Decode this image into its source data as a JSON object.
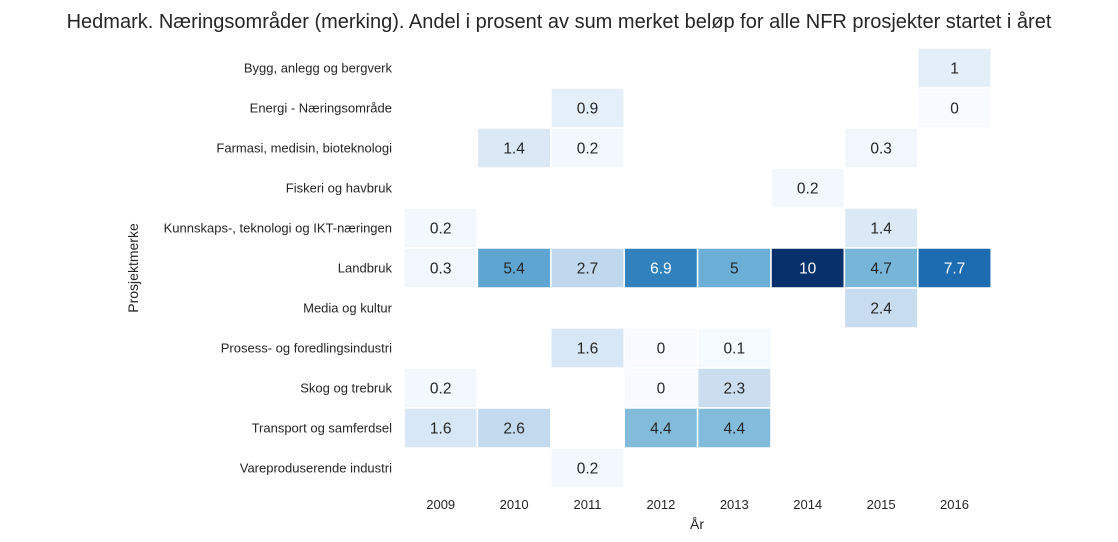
{
  "chart_data": {
    "type": "heatmap",
    "title": "Hedmark. Næringsområder (merking). Andel i prosent av sum merket beløp for alle NFR prosjekter startet i året",
    "xlabel": "År",
    "ylabel": "Prosjektmerke",
    "x": [
      "2009",
      "2010",
      "2011",
      "2012",
      "2013",
      "2014",
      "2015",
      "2016"
    ],
    "y": [
      "Bygg, anlegg og bergverk",
      "Energi - Næringsområde",
      "Farmasi, medisin, bioteknologi",
      "Fiskeri og havbruk",
      "Kunnskaps-, teknologi og IKT-næringen",
      "Landbruk",
      "Media og kultur",
      "Prosess- og foredlingsindustri",
      "Skog og trebruk",
      "Transport og samferdsel",
      "Vareproduserende industri"
    ],
    "values": [
      [
        null,
        null,
        null,
        null,
        null,
        null,
        null,
        1
      ],
      [
        null,
        null,
        0.9,
        null,
        null,
        null,
        null,
        0
      ],
      [
        null,
        1.4,
        0.2,
        null,
        null,
        null,
        0.3,
        null
      ],
      [
        null,
        null,
        null,
        null,
        null,
        0.2,
        null,
        null
      ],
      [
        0.2,
        null,
        null,
        null,
        null,
        null,
        1.4,
        null
      ],
      [
        0.3,
        5.4,
        2.7,
        6.9,
        5,
        10,
        4.7,
        7.7
      ],
      [
        null,
        null,
        null,
        null,
        null,
        null,
        2.4,
        null
      ],
      [
        null,
        null,
        1.6,
        0,
        0.1,
        null,
        null,
        null
      ],
      [
        0.2,
        null,
        null,
        0,
        2.3,
        null,
        null,
        null
      ],
      [
        1.6,
        2.6,
        null,
        4.4,
        4.4,
        null,
        null,
        null
      ],
      [
        null,
        null,
        0.2,
        null,
        null,
        null,
        null,
        null
      ]
    ],
    "value_range": [
      0,
      10
    ],
    "colormap": "Blues",
    "legend": "none",
    "grid": false
  }
}
